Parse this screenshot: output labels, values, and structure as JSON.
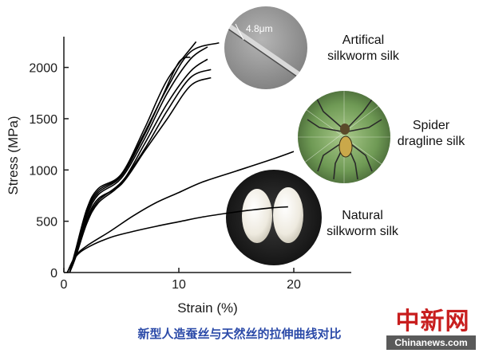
{
  "chart_data": {
    "type": "line",
    "xlabel": "Strain (%)",
    "ylabel": "Stress (MPa)",
    "xlim": [
      0,
      25
    ],
    "ylim": [
      0,
      2300
    ],
    "x_ticks": [
      0,
      10,
      20
    ],
    "y_ticks": [
      0,
      500,
      1000,
      1500,
      2000
    ],
    "grid": false,
    "series": [
      {
        "group": "artificial-silkworm",
        "points": [
          [
            0.5,
            0
          ],
          [
            1,
            180
          ],
          [
            2,
            550
          ],
          [
            3,
            760
          ],
          [
            5,
            920
          ],
          [
            7,
            1300
          ],
          [
            9,
            1750
          ],
          [
            11,
            2080
          ],
          [
            12.5,
            2200
          ]
        ]
      },
      {
        "group": "artificial-silkworm",
        "points": [
          [
            0.5,
            0
          ],
          [
            1,
            200
          ],
          [
            2,
            600
          ],
          [
            3,
            800
          ],
          [
            5,
            950
          ],
          [
            7,
            1360
          ],
          [
            9,
            1800
          ],
          [
            11,
            2150
          ],
          [
            13.5,
            2240
          ]
        ]
      },
      {
        "group": "artificial-silkworm",
        "points": [
          [
            0.5,
            0
          ],
          [
            1,
            150
          ],
          [
            2,
            500
          ],
          [
            3,
            700
          ],
          [
            5,
            880
          ],
          [
            7,
            1200
          ],
          [
            9,
            1580
          ],
          [
            11,
            1900
          ],
          [
            12.8,
            1980
          ]
        ]
      },
      {
        "group": "artificial-silkworm",
        "points": [
          [
            0.5,
            0
          ],
          [
            1,
            170
          ],
          [
            2,
            520
          ],
          [
            3,
            720
          ],
          [
            5,
            860
          ],
          [
            7,
            1180
          ],
          [
            9,
            1500
          ],
          [
            11,
            1820
          ],
          [
            12.8,
            1900
          ]
        ]
      },
      {
        "group": "artificial-silkworm",
        "points": [
          [
            0.5,
            0
          ],
          [
            1,
            210
          ],
          [
            2,
            620
          ],
          [
            3,
            820
          ],
          [
            5,
            960
          ],
          [
            7,
            1400
          ],
          [
            9,
            1880
          ],
          [
            11.5,
            2250
          ]
        ]
      },
      {
        "group": "artificial-silkworm",
        "points": [
          [
            0.5,
            0
          ],
          [
            1,
            190
          ],
          [
            2,
            580
          ],
          [
            3,
            780
          ],
          [
            5,
            940
          ],
          [
            7,
            1340
          ],
          [
            8.5,
            1700
          ],
          [
            10,
            2050
          ],
          [
            11,
            2100
          ]
        ]
      },
      {
        "group": "artificial-silkworm",
        "points": [
          [
            0.5,
            0
          ],
          [
            1,
            140
          ],
          [
            2,
            480
          ],
          [
            3,
            680
          ],
          [
            5,
            870
          ],
          [
            7,
            1250
          ],
          [
            9,
            1650
          ],
          [
            11,
            1960
          ],
          [
            12.5,
            2080
          ]
        ]
      },
      {
        "group": "spider-dragline",
        "points": [
          [
            0.3,
            0
          ],
          [
            1,
            160
          ],
          [
            2,
            260
          ],
          [
            4,
            400
          ],
          [
            6,
            550
          ],
          [
            8,
            680
          ],
          [
            10,
            780
          ],
          [
            12,
            880
          ],
          [
            15,
            990
          ],
          [
            18,
            1100
          ],
          [
            20,
            1180
          ]
        ]
      },
      {
        "group": "natural-silkworm",
        "points": [
          [
            0.3,
            0
          ],
          [
            1,
            150
          ],
          [
            2,
            240
          ],
          [
            4,
            340
          ],
          [
            6,
            400
          ],
          [
            8,
            450
          ],
          [
            10,
            495
          ],
          [
            12,
            540
          ],
          [
            14,
            575
          ],
          [
            16,
            605
          ],
          [
            18,
            630
          ],
          [
            19.5,
            640
          ]
        ]
      }
    ],
    "annotations": {
      "artificial": [
        "Artifical",
        "silkworm silk"
      ],
      "spider": [
        "Spider",
        "dragline silk"
      ],
      "natural": [
        "Natural",
        "silkworm silk"
      ],
      "scale_bar": "4.8μm"
    },
    "colors": {
      "line": "#000000",
      "axis": "#1a1a1a"
    }
  },
  "caption": "新型人造蚕丝与天然丝的拉伸曲线对比",
  "watermark": {
    "logo": "中新网",
    "site": "Chinanews.com"
  }
}
